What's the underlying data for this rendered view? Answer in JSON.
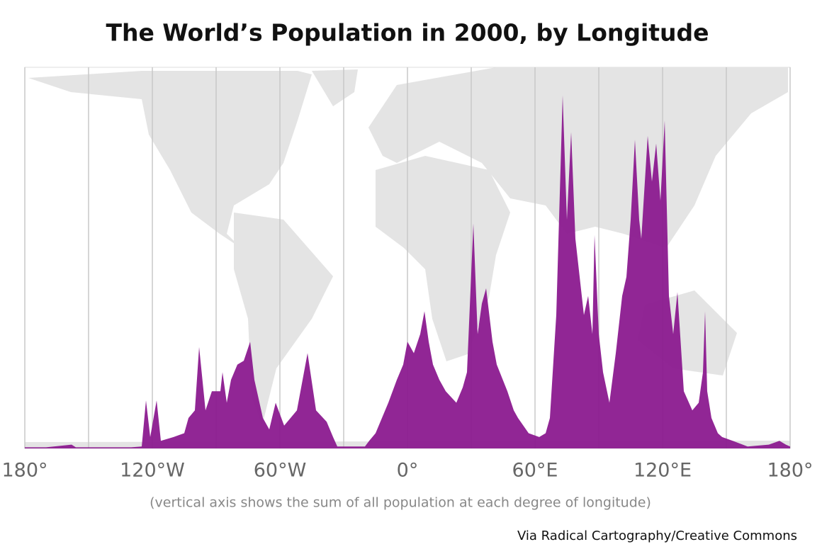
{
  "chart_data": {
    "type": "area",
    "title": "The World’s Population in 2000, by Longitude",
    "note": "(vertical axis shows the sum of all population at each degree of longitude)",
    "source": "Via Radical Cartography/Creative Commons",
    "color": "#8b1a8f",
    "grid": true,
    "x": [
      -180,
      -170,
      -158,
      -156,
      -130,
      -125,
      -123,
      -121,
      -118,
      -116,
      -110,
      -105,
      -103,
      -100,
      -98,
      -95,
      -92,
      -88,
      -87,
      -85,
      -83,
      -80,
      -77,
      -74,
      -72,
      -68,
      -65,
      -62,
      -58,
      -55,
      -52,
      -47,
      -43,
      -38,
      -35,
      -33,
      -20,
      -18,
      -15,
      -12,
      -9,
      -5,
      -2,
      0,
      3,
      6,
      8,
      10,
      12,
      15,
      18,
      23,
      26,
      28,
      31,
      33,
      35,
      37,
      40,
      42,
      47,
      50,
      52,
      57,
      62,
      65,
      67,
      70,
      73,
      75,
      77,
      79,
      80,
      83,
      85,
      87,
      88,
      90,
      92,
      95,
      98,
      101,
      103,
      105,
      107,
      109,
      110,
      113,
      115,
      117,
      119,
      121,
      123,
      125,
      127,
      130,
      134,
      137,
      139,
      140,
      141,
      143,
      146,
      148,
      153,
      160,
      170,
      175,
      178,
      180
    ],
    "values": [
      0.3,
      0.3,
      1,
      0.3,
      0.3,
      0.5,
      12.6,
      3,
      12.6,
      2,
      3,
      4,
      8,
      10,
      26.6,
      10,
      15,
      15,
      20,
      12,
      18,
      22,
      23,
      28,
      18,
      8,
      5,
      12,
      6,
      8,
      10,
      25,
      10,
      7,
      3,
      0.5,
      0.5,
      2,
      4,
      8,
      12,
      18,
      22,
      28,
      25,
      30,
      36,
      28,
      22,
      18,
      15,
      12,
      16,
      20,
      59,
      30,
      38,
      42,
      28,
      22,
      15,
      10,
      8,
      4,
      3,
      4,
      8,
      35,
      92.6,
      60,
      83,
      55,
      50,
      35,
      40,
      30,
      56,
      30,
      20,
      12,
      25,
      40,
      45,
      60,
      81,
      60,
      55,
      82,
      70,
      80,
      65,
      86,
      40,
      30,
      41,
      15,
      10,
      12,
      20,
      36,
      15,
      8,
      4,
      3,
      2,
      0.5,
      1,
      2,
      1,
      0.5
    ],
    "xlim": [
      -180,
      180
    ],
    "ylim": [
      0,
      100
    ],
    "xticks": [
      {
        "value": -180,
        "label": "180°"
      },
      {
        "value": -120,
        "label": "120°W"
      },
      {
        "value": -60,
        "label": "60°W"
      },
      {
        "value": 0,
        "label": "0°"
      },
      {
        "value": 60,
        "label": "60°E"
      },
      {
        "value": 120,
        "label": "120°E"
      },
      {
        "value": 180,
        "label": "180°"
      }
    ],
    "minor_xticks": [
      -150,
      -90,
      -30,
      30,
      90,
      150
    ]
  }
}
